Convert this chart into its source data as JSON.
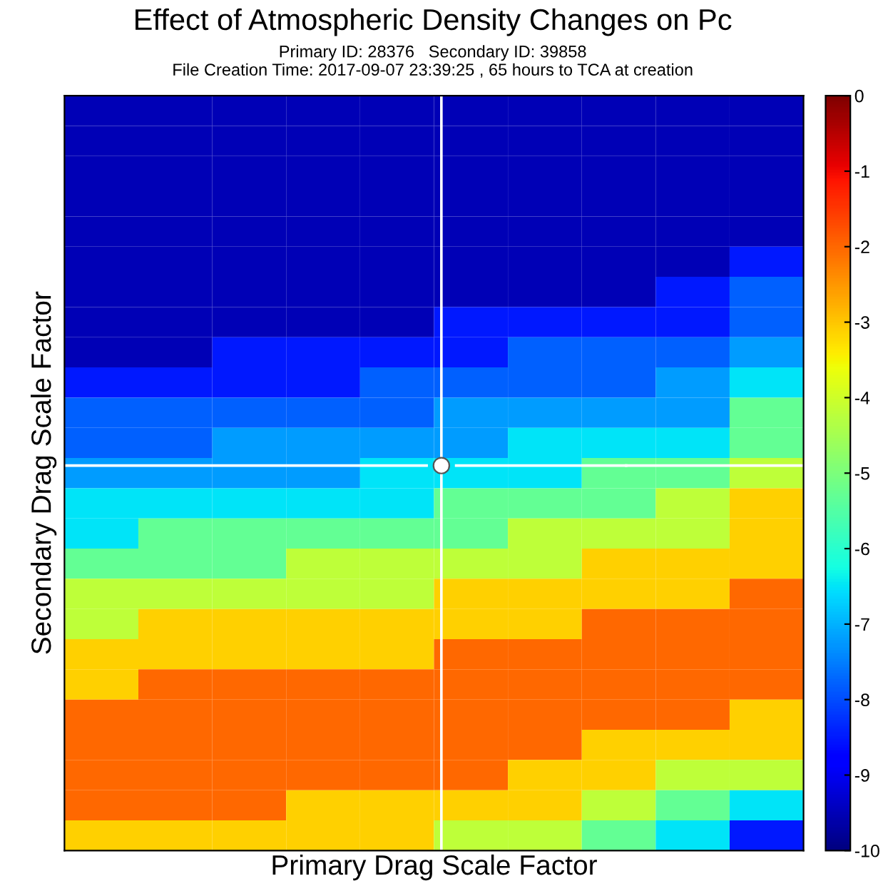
{
  "chart_data": {
    "type": "heatmap",
    "title": "Effect of Atmospheric Density Changes on Pc",
    "subtitle": "Primary ID: 28376   Secondary ID: 39858\nFile Creation Time: 2017-09-07 23:39:25 , 65 hours to TCA at creation",
    "xlabel": "Primary Drag Scale Factor",
    "ylabel": "Secondary Drag Scale Factor",
    "categories": [
      null,
      null,
      null,
      null,
      null,
      null,
      null,
      null,
      null,
      null
    ],
    "y_categories": [
      null,
      null,
      null,
      null,
      null,
      null,
      null,
      null,
      null,
      null,
      null,
      null,
      null,
      null,
      null,
      null,
      null,
      null,
      null,
      null,
      null,
      null,
      null,
      null,
      null
    ],
    "cells": [
      [
        -9.5,
        -9.5,
        -9.5,
        -9.5,
        -9.5,
        -9.5,
        -9.5,
        -9.5,
        -9.5,
        -9.5
      ],
      [
        -9.5,
        -9.5,
        -9.5,
        -9.5,
        -9.5,
        -9.5,
        -9.5,
        -9.5,
        -9.5,
        -9.5
      ],
      [
        -9.5,
        -9.5,
        -9.5,
        -9.5,
        -9.5,
        -9.5,
        -9.5,
        -9.5,
        -9.5,
        -9.5
      ],
      [
        -9.5,
        -9.5,
        -9.5,
        -9.5,
        -9.5,
        -9.5,
        -9.5,
        -9.5,
        -9.5,
        -9.5
      ],
      [
        -9.5,
        -9.5,
        -9.5,
        -9.5,
        -9.5,
        -9.5,
        -9.5,
        -9.5,
        -9.5,
        -9.5
      ],
      [
        -9.5,
        -9.5,
        -9.5,
        -9.5,
        -9.5,
        -9.5,
        -9.5,
        -9.5,
        -9.5,
        -8.5
      ],
      [
        -9.5,
        -9.5,
        -9.5,
        -9.5,
        -9.5,
        -9.5,
        -9.5,
        -9.5,
        -8.5,
        -7.8
      ],
      [
        -9.5,
        -9.5,
        -9.5,
        -9.5,
        -9.5,
        -8.5,
        -8.5,
        -8.5,
        -8.5,
        -7.8
      ],
      [
        -9.5,
        -9.5,
        -8.5,
        -8.5,
        -8.5,
        -8.5,
        -7.8,
        -7.8,
        -7.8,
        -7.2
      ],
      [
        -8.5,
        -8.5,
        -8.5,
        -8.5,
        -7.8,
        -7.8,
        -7.8,
        -7.8,
        -7.2,
        -6.5
      ],
      [
        -7.8,
        -7.8,
        -7.8,
        -7.8,
        -7.8,
        -7.2,
        -7.2,
        -7.2,
        -7.2,
        -5.3
      ],
      [
        -7.8,
        -7.8,
        -7.2,
        -7.2,
        -7.2,
        -7.2,
        -6.5,
        -6.5,
        -6.5,
        -5.3
      ],
      [
        -7.2,
        -7.2,
        -7.2,
        -7.2,
        -6.5,
        -6.5,
        -6.5,
        -5.3,
        -5.3,
        -4.2
      ],
      [
        -6.5,
        -6.5,
        -6.5,
        -6.5,
        -6.5,
        -5.3,
        -5.3,
        -5.3,
        -4.2,
        -3.1
      ],
      [
        -6.5,
        -5.3,
        -5.3,
        -5.3,
        -5.3,
        -5.3,
        -4.2,
        -4.2,
        -4.2,
        -3.1
      ],
      [
        -5.3,
        -5.3,
        -5.3,
        -4.2,
        -4.2,
        -4.2,
        -4.2,
        -3.1,
        -3.1,
        -3.1
      ],
      [
        -4.2,
        -4.2,
        -4.2,
        -4.2,
        -4.2,
        -3.1,
        -3.1,
        -3.1,
        -3.1,
        -2.0
      ],
      [
        -4.2,
        -3.1,
        -3.1,
        -3.1,
        -3.1,
        -3.1,
        -3.1,
        -2.0,
        -2.0,
        -2.0
      ],
      [
        -3.1,
        -3.1,
        -3.1,
        -3.1,
        -3.1,
        -2.0,
        -2.0,
        -2.0,
        -2.0,
        -2.0
      ],
      [
        -3.1,
        -2.0,
        -2.0,
        -2.0,
        -2.0,
        -2.0,
        -2.0,
        -2.0,
        -2.0,
        -2.0
      ],
      [
        -2.0,
        -2.0,
        -2.0,
        -2.0,
        -2.0,
        -2.0,
        -2.0,
        -2.0,
        -2.0,
        -3.1
      ],
      [
        -2.0,
        -2.0,
        -2.0,
        -2.0,
        -2.0,
        -2.0,
        -2.0,
        -3.1,
        -3.1,
        -3.1
      ],
      [
        -2.0,
        -2.0,
        -2.0,
        -2.0,
        -2.0,
        -2.0,
        -3.1,
        -3.1,
        -4.2,
        -4.2
      ],
      [
        -2.0,
        -2.0,
        -2.0,
        -3.1,
        -3.1,
        -3.1,
        -3.1,
        -4.2,
        -5.3,
        -6.5
      ],
      [
        -3.1,
        -3.1,
        -3.1,
        -3.1,
        -3.1,
        -4.2,
        -4.2,
        -5.3,
        -6.5,
        -8.5
      ]
    ],
    "clim": [
      -10,
      0
    ],
    "cticks": [
      0,
      -1,
      -2,
      -3,
      -4,
      -5,
      -6,
      -7,
      -8,
      -9,
      -10
    ]
  }
}
